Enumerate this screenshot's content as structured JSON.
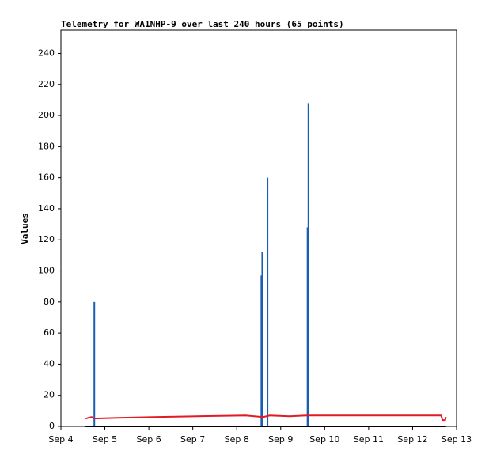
{
  "chart_data": {
    "type": "line",
    "title": "Telemetry for WA1NHP-9 over last 240 hours (65 points)",
    "y_label": "Values",
    "xlim": [
      4,
      13
    ],
    "xticks": [
      {
        "value": 4,
        "label": "Sep 4"
      },
      {
        "value": 5,
        "label": "Sep 5"
      },
      {
        "value": 6,
        "label": "Sep 6"
      },
      {
        "value": 7,
        "label": "Sep 7"
      },
      {
        "value": 8,
        "label": "Sep 8"
      },
      {
        "value": 9,
        "label": "Sep 9"
      },
      {
        "value": 10,
        "label": "Sep 10"
      },
      {
        "value": 11,
        "label": "Sep 11"
      },
      {
        "value": 12,
        "label": "Sep 12"
      },
      {
        "value": 13,
        "label": "Sep 13"
      }
    ],
    "ylim": [
      0,
      255
    ],
    "yticks": [
      0,
      20,
      40,
      60,
      80,
      100,
      120,
      140,
      160,
      180,
      200,
      220,
      240
    ],
    "grid": false,
    "series": [
      {
        "color": "#1a5fb4",
        "style": "impulse",
        "x": [
          4.76,
          8.56,
          8.58,
          8.7,
          9.61,
          9.63
        ],
        "values": [
          80,
          97,
          112,
          160,
          128,
          208
        ]
      },
      {
        "color": "#e01b24",
        "style": "line",
        "x": [
          4.56,
          4.7,
          4.75,
          5.3,
          6.1,
          7.1,
          8.2,
          8.6,
          8.75,
          9.2,
          9.6,
          12.65,
          12.68,
          12.74,
          12.76
        ],
        "values": [
          5,
          6,
          5,
          5.5,
          6,
          6.5,
          7,
          6,
          7,
          6.5,
          7,
          7,
          4,
          4,
          6
        ]
      },
      {
        "color": "#000000",
        "style": "line",
        "x": [
          4.56,
          12.76
        ],
        "values": [
          0,
          0
        ]
      }
    ]
  }
}
